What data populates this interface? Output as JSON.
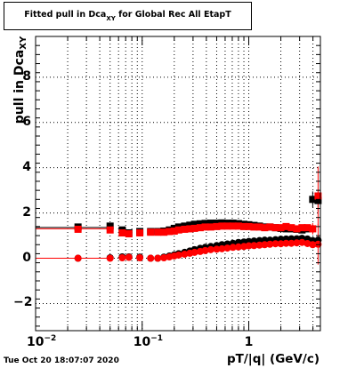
{
  "title": {
    "prefix": "Fitted pull in Dca",
    "subscript": "XY",
    "suffix": " for Global Rec All EtapT"
  },
  "timestamp": "Tue Oct 20 18:07:07 2020",
  "chart_data": {
    "type": "scatter",
    "xlabel": "pT/|q| (GeV/c)",
    "ylabel_main": "pull in Dca",
    "ylabel_sub": "XY",
    "xscale": "log",
    "xlim": [
      0.01,
      4.7
    ],
    "ylim": [
      -3.2,
      9.8
    ],
    "grid": true,
    "y_ticks": [
      -2,
      0,
      2,
      4,
      6,
      8
    ],
    "x_ticks": [
      {
        "value": 0.01,
        "base": "10",
        "exp": "-2"
      },
      {
        "value": 0.1,
        "base": "10",
        "exp": "-1"
      },
      {
        "value": 1,
        "base": "1",
        "exp": ""
      }
    ],
    "series": [
      {
        "color": "#000000",
        "marker": "square",
        "x": [
          0.025,
          0.05,
          0.065,
          0.075,
          0.095,
          0.12,
          0.14,
          0.16,
          0.18,
          0.2,
          0.22,
          0.25,
          0.28,
          0.31,
          0.35,
          0.39,
          0.44,
          0.5,
          0.56,
          0.63,
          0.71,
          0.8,
          0.9,
          1.0,
          1.12,
          1.26,
          1.41,
          1.58,
          1.78,
          2.0,
          2.24,
          2.51,
          2.82,
          3.16,
          3.55,
          3.98,
          4.47
        ],
        "y": [
          1.38,
          1.42,
          1.25,
          1.12,
          1.18,
          1.18,
          1.18,
          1.2,
          1.25,
          1.32,
          1.38,
          1.42,
          1.46,
          1.5,
          1.52,
          1.54,
          1.55,
          1.55,
          1.56,
          1.55,
          1.55,
          1.53,
          1.5,
          1.48,
          1.45,
          1.42,
          1.38,
          1.38,
          1.35,
          1.32,
          1.3,
          1.3,
          1.28,
          1.25,
          1.3,
          2.6,
          2.55
        ],
        "yerr": [
          0.06,
          0.05,
          0.04,
          0.04,
          0.03,
          0.03,
          0.03,
          0.03,
          0.03,
          0.03,
          0.03,
          0.03,
          0.03,
          0.03,
          0.03,
          0.03,
          0.03,
          0.03,
          0.03,
          0.03,
          0.03,
          0.03,
          0.03,
          0.03,
          0.03,
          0.03,
          0.03,
          0.03,
          0.04,
          0.04,
          0.05,
          0.05,
          0.06,
          0.08,
          0.12,
          0.35,
          0.5
        ]
      },
      {
        "color": "#ff0000",
        "marker": "square",
        "x": [
          0.025,
          0.05,
          0.065,
          0.075,
          0.095,
          0.12,
          0.14,
          0.16,
          0.18,
          0.2,
          0.22,
          0.25,
          0.28,
          0.31,
          0.35,
          0.39,
          0.44,
          0.5,
          0.56,
          0.63,
          0.71,
          0.8,
          0.9,
          1.0,
          1.12,
          1.26,
          1.41,
          1.58,
          1.78,
          2.0,
          2.24,
          2.51,
          2.82,
          3.16,
          3.55,
          3.98,
          4.47
        ],
        "y": [
          1.28,
          1.25,
          1.12,
          1.08,
          1.12,
          1.15,
          1.15,
          1.15,
          1.18,
          1.2,
          1.25,
          1.28,
          1.3,
          1.32,
          1.35,
          1.38,
          1.38,
          1.4,
          1.42,
          1.42,
          1.42,
          1.42,
          1.4,
          1.4,
          1.38,
          1.38,
          1.35,
          1.38,
          1.35,
          1.35,
          1.4,
          1.35,
          1.3,
          1.35,
          1.35,
          1.3,
          2.75
        ],
        "yerr": [
          0.05,
          0.04,
          0.04,
          0.03,
          0.03,
          0.03,
          0.03,
          0.03,
          0.03,
          0.03,
          0.03,
          0.03,
          0.03,
          0.03,
          0.03,
          0.03,
          0.03,
          0.03,
          0.03,
          0.03,
          0.03,
          0.03,
          0.03,
          0.03,
          0.03,
          0.03,
          0.03,
          0.03,
          0.04,
          0.04,
          0.05,
          0.05,
          0.06,
          0.08,
          0.12,
          0.25,
          1.3
        ]
      },
      {
        "color": "#000000",
        "marker": "circle",
        "x": [
          0.025,
          0.05,
          0.065,
          0.075,
          0.095,
          0.12,
          0.14,
          0.16,
          0.18,
          0.2,
          0.22,
          0.25,
          0.28,
          0.31,
          0.35,
          0.39,
          0.44,
          0.5,
          0.56,
          0.63,
          0.71,
          0.8,
          0.9,
          1.0,
          1.12,
          1.26,
          1.41,
          1.58,
          1.78,
          2.0,
          2.24,
          2.51,
          2.82,
          3.16,
          3.55,
          3.98,
          4.47
        ],
        "y": [
          0.0,
          0.02,
          0.06,
          0.06,
          0.05,
          0.0,
          0.0,
          0.05,
          0.1,
          0.15,
          0.2,
          0.26,
          0.32,
          0.38,
          0.44,
          0.48,
          0.52,
          0.56,
          0.6,
          0.63,
          0.66,
          0.7,
          0.72,
          0.74,
          0.76,
          0.78,
          0.8,
          0.8,
          0.82,
          0.84,
          0.85,
          0.86,
          0.86,
          0.88,
          0.85,
          0.78,
          0.8
        ],
        "yerr": [
          0.04,
          0.03,
          0.03,
          0.03,
          0.03,
          0.03,
          0.03,
          0.03,
          0.03,
          0.03,
          0.03,
          0.03,
          0.03,
          0.03,
          0.03,
          0.03,
          0.03,
          0.03,
          0.03,
          0.03,
          0.03,
          0.03,
          0.03,
          0.03,
          0.03,
          0.03,
          0.03,
          0.03,
          0.03,
          0.04,
          0.04,
          0.05,
          0.05,
          0.06,
          0.08,
          0.1,
          0.15
        ]
      },
      {
        "color": "#ff0000",
        "marker": "circle",
        "x": [
          0.025,
          0.05,
          0.065,
          0.075,
          0.095,
          0.12,
          0.14,
          0.16,
          0.18,
          0.2,
          0.22,
          0.25,
          0.28,
          0.31,
          0.35,
          0.39,
          0.44,
          0.5,
          0.56,
          0.63,
          0.71,
          0.8,
          0.9,
          1.0,
          1.12,
          1.26,
          1.41,
          1.58,
          1.78,
          2.0,
          2.24,
          2.51,
          2.82,
          3.16,
          3.55,
          3.98,
          4.47
        ],
        "y": [
          0.0,
          0.0,
          0.02,
          0.04,
          0.02,
          0.0,
          0.0,
          0.02,
          0.06,
          0.1,
          0.14,
          0.18,
          0.22,
          0.26,
          0.3,
          0.34,
          0.38,
          0.4,
          0.42,
          0.45,
          0.48,
          0.5,
          0.52,
          0.55,
          0.56,
          0.58,
          0.6,
          0.62,
          0.64,
          0.64,
          0.66,
          0.66,
          0.68,
          0.7,
          0.65,
          0.6,
          0.62
        ],
        "yerr": [
          0.04,
          0.03,
          0.03,
          0.03,
          0.03,
          0.03,
          0.03,
          0.03,
          0.03,
          0.03,
          0.03,
          0.03,
          0.03,
          0.03,
          0.03,
          0.03,
          0.03,
          0.03,
          0.03,
          0.03,
          0.03,
          0.03,
          0.03,
          0.03,
          0.03,
          0.03,
          0.03,
          0.03,
          0.03,
          0.04,
          0.04,
          0.05,
          0.05,
          0.06,
          0.08,
          0.1,
          0.9
        ]
      }
    ],
    "lines": [
      {
        "color": "#ff0000",
        "from_x": 0.01,
        "to_x": 0.05,
        "y": 1.3
      },
      {
        "color": "#000000",
        "from_x": 0.01,
        "to_x": 0.05,
        "y": 1.36
      },
      {
        "color": "#ff0000",
        "from_x": 0.01,
        "to_x": 0.05,
        "y": 0.0
      }
    ]
  }
}
